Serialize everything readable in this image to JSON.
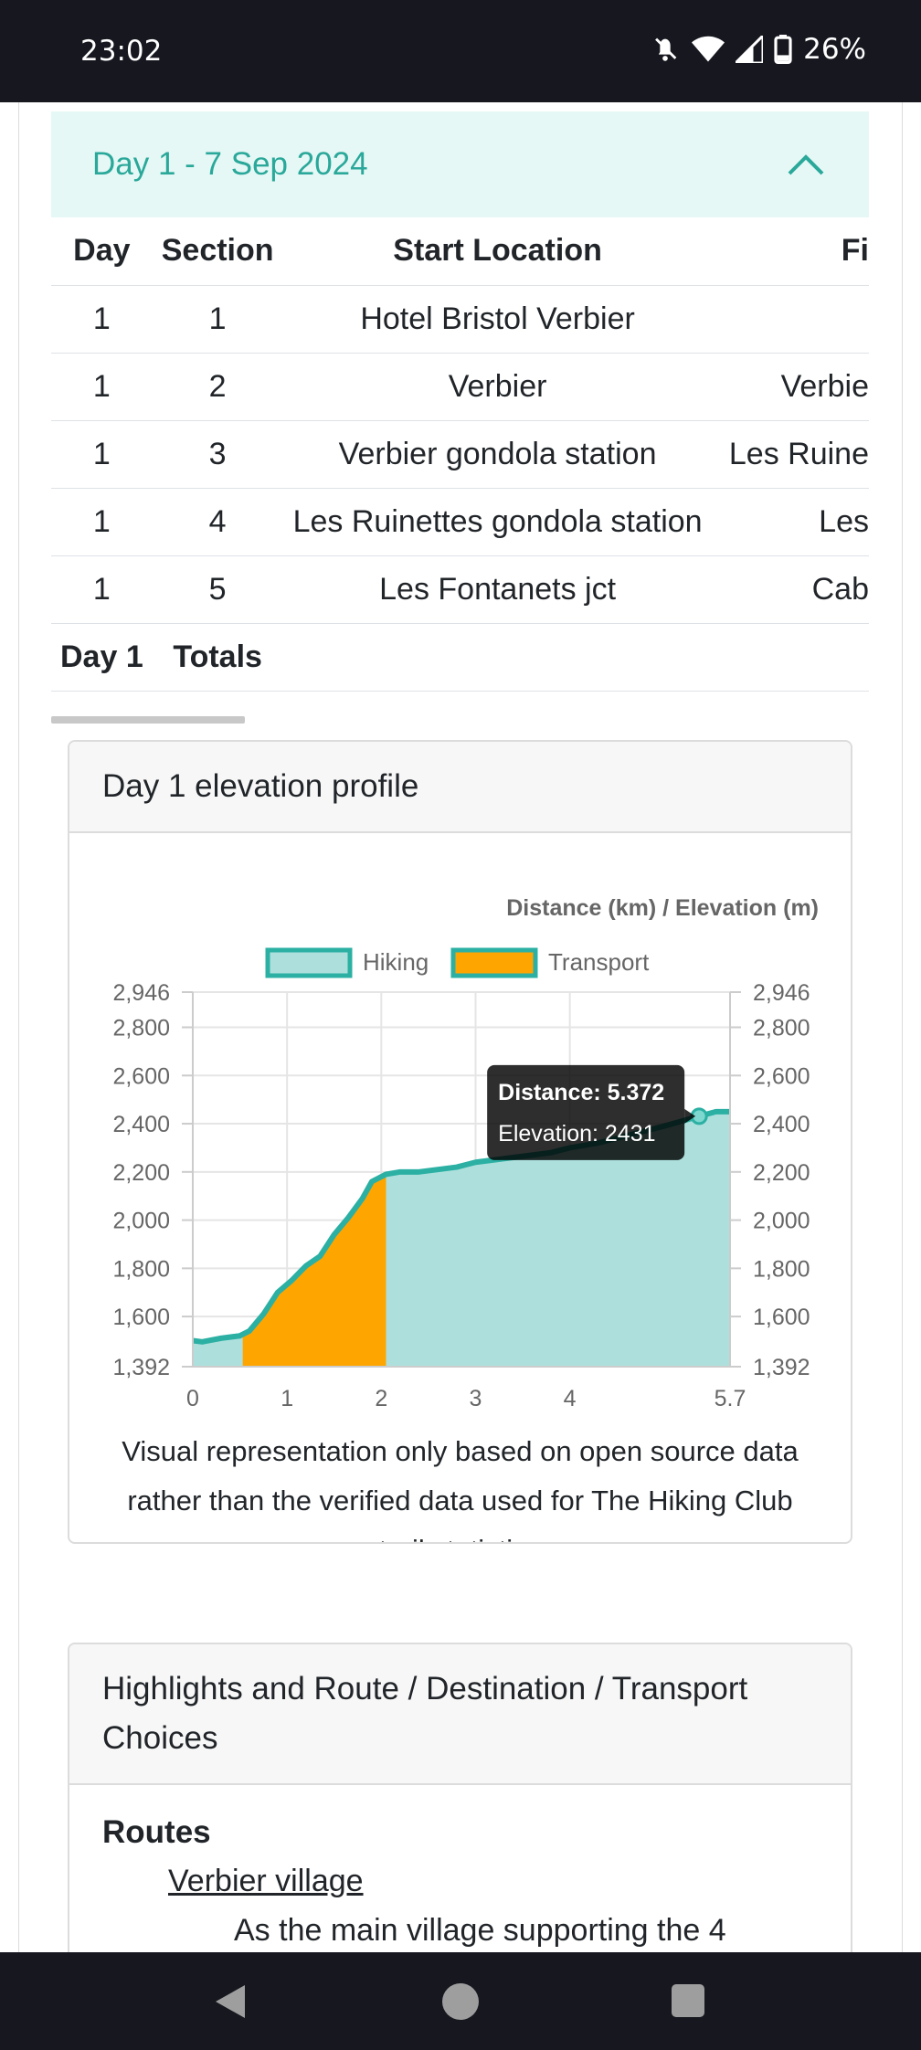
{
  "status_bar": {
    "time": "23:02",
    "battery": "26%",
    "icons": [
      "mute-icon",
      "wifi-icon",
      "signal-icon",
      "battery-icon"
    ]
  },
  "day_section": {
    "title": "Day 1 - 7 Sep 2024",
    "table": {
      "headers": [
        "Day",
        "Section",
        "Start Location",
        "Fi"
      ],
      "rows": [
        {
          "day": "1",
          "section": "1",
          "start": "Hotel Bristol Verbier",
          "finish": ""
        },
        {
          "day": "1",
          "section": "2",
          "start": "Verbier",
          "finish": "Verbie"
        },
        {
          "day": "1",
          "section": "3",
          "start": "Verbier gondola station",
          "finish": "Les Ruine"
        },
        {
          "day": "1",
          "section": "4",
          "start": "Les Ruinettes gondola station",
          "finish": "Les"
        },
        {
          "day": "1",
          "section": "5",
          "start": "Les Fontanets jct",
          "finish": "Cab"
        }
      ],
      "totals": {
        "day": "Day 1",
        "label": "Totals"
      }
    }
  },
  "elevation_card": {
    "title": "Day 1 elevation profile",
    "note": "Visual representation only based on open source data rather than the verified data used for The Hiking Club trail statistics"
  },
  "chart_data": {
    "type": "area",
    "title": "Distance (km) / Elevation (m)",
    "legend": [
      {
        "name": "Hiking",
        "fill": "#ade0dc",
        "border": "#2bb0a3"
      },
      {
        "name": "Transport",
        "fill": "#ffa500",
        "border": "#2bb0a3"
      }
    ],
    "legend_position": "top",
    "xlim": [
      0,
      5.7
    ],
    "ylim": [
      1392,
      2946
    ],
    "x_ticks": [
      "0",
      "1",
      "2",
      "3",
      "4",
      "5.7"
    ],
    "x_tick_values": [
      0,
      1,
      2,
      3,
      4,
      5.7
    ],
    "y_ticks": [
      "1,392",
      "1,600",
      "1,800",
      "2,000",
      "2,200",
      "2,400",
      "2,600",
      "2,800",
      "2,946"
    ],
    "y_tick_values": [
      1392,
      1600,
      1800,
      2000,
      2200,
      2400,
      2600,
      2800,
      2946
    ],
    "grid": true,
    "profile": [
      [
        0,
        1500
      ],
      [
        0.1,
        1495
      ],
      [
        0.3,
        1510
      ],
      [
        0.5,
        1520
      ],
      [
        0.6,
        1540
      ],
      [
        0.75,
        1610
      ],
      [
        0.9,
        1700
      ],
      [
        1.05,
        1750
      ],
      [
        1.2,
        1810
      ],
      [
        1.35,
        1850
      ],
      [
        1.5,
        1940
      ],
      [
        1.65,
        2010
      ],
      [
        1.8,
        2090
      ],
      [
        1.9,
        2160
      ],
      [
        2.05,
        2190
      ],
      [
        2.2,
        2200
      ],
      [
        2.4,
        2200
      ],
      [
        2.6,
        2210
      ],
      [
        2.8,
        2220
      ],
      [
        3.0,
        2240
      ],
      [
        3.2,
        2250
      ],
      [
        3.4,
        2260
      ],
      [
        3.6,
        2270
      ],
      [
        3.8,
        2280
      ],
      [
        4.0,
        2300
      ],
      [
        4.3,
        2320
      ],
      [
        4.6,
        2350
      ],
      [
        5.0,
        2390
      ],
      [
        5.372,
        2431
      ],
      [
        5.55,
        2450
      ],
      [
        5.7,
        2450
      ]
    ],
    "transport_range": [
      0.53,
      2.05
    ],
    "tooltip": {
      "title": "Distance: 5.372",
      "body": "Elevation: 2431",
      "x": 5.372,
      "y": 2431
    },
    "colors": {
      "line": "#2bb0a3",
      "hiking_fill": "#ade0dc",
      "transport_fill": "#ffa500"
    }
  },
  "highlights_card": {
    "title": "Highlights and Route / Destination / Transport Choices",
    "routes_heading": "Routes",
    "route_link": "Verbier village",
    "route_text": "As the main village supporting the 4"
  },
  "nav_bar": {
    "icons": [
      "back-icon",
      "home-icon",
      "recent-apps-icon"
    ]
  }
}
